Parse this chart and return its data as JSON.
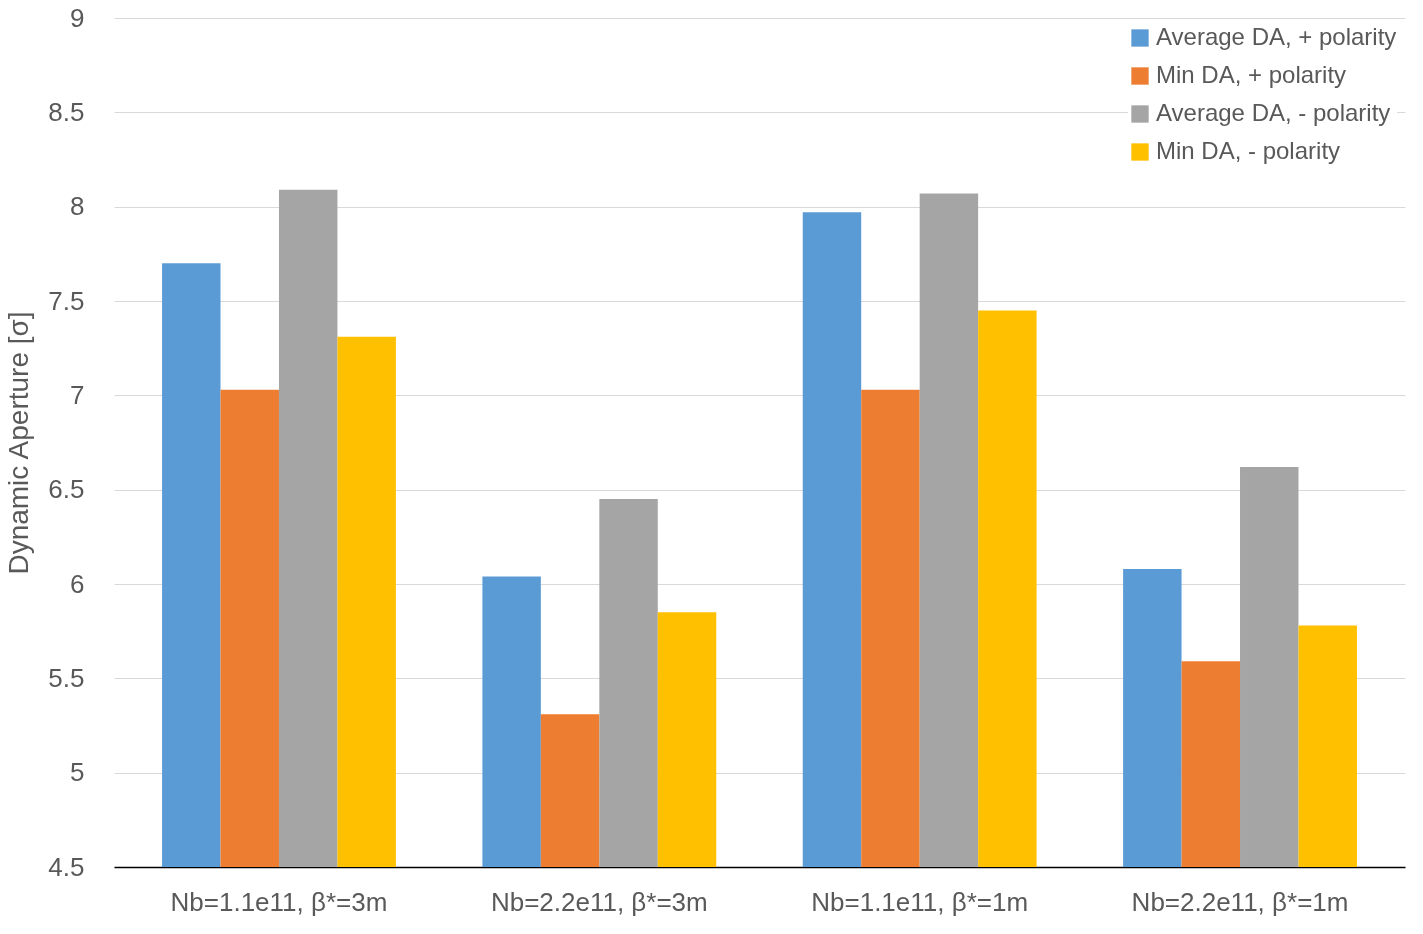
{
  "chart_data": {
    "type": "bar",
    "ylabel": "Dynamic Aperture [σ]",
    "categories": [
      "Nb=1.1e11, β*=3m",
      "Nb=2.2e11, β*=3m",
      "Nb=1.1e11, β*=1m",
      "Nb=2.2e11, β*=1m"
    ],
    "series": [
      {
        "name": "Average DA, + polarity",
        "color": "#5b9bd5",
        "values": [
          7.7,
          6.04,
          7.97,
          6.08
        ]
      },
      {
        "name": "Min DA, + polarity",
        "color": "#ed7d31",
        "values": [
          7.03,
          5.31,
          7.03,
          5.59
        ]
      },
      {
        "name": "Average DA, - polarity",
        "color": "#a5a5a5",
        "values": [
          8.09,
          6.45,
          8.07,
          6.62
        ]
      },
      {
        "name": "Min DA, - polarity",
        "color": "#ffc000",
        "values": [
          7.31,
          5.85,
          7.45,
          5.78
        ]
      }
    ],
    "ylim": [
      4.5,
      9
    ],
    "yticks": [
      4.5,
      5,
      5.5,
      6,
      6.5,
      7,
      7.5,
      8,
      8.5,
      9
    ],
    "grid": "y",
    "legend": "top right"
  }
}
